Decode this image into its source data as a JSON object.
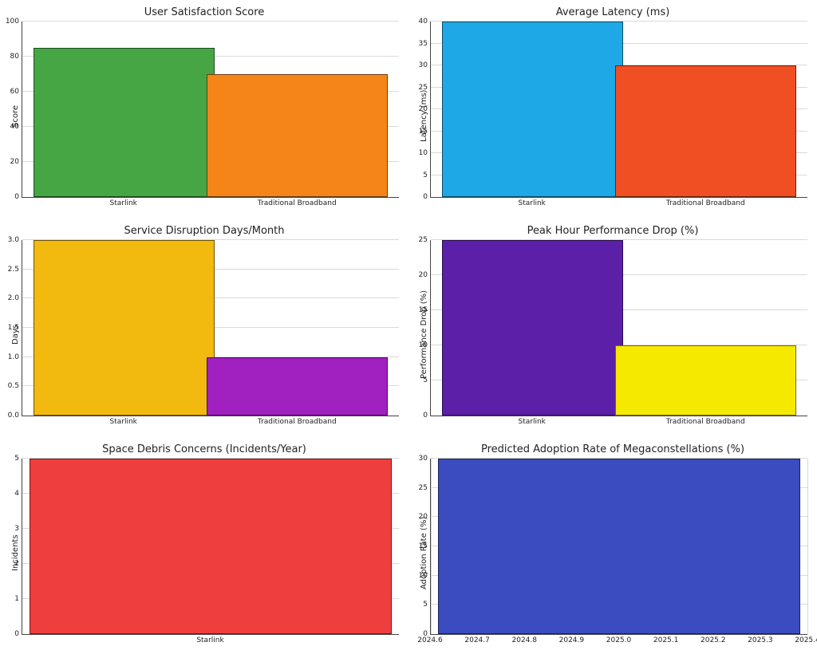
{
  "global": {
    "background_color": "#ffffff",
    "grid_color": "#d9d9d9",
    "axis_color": "#444444",
    "text_color": "#222222",
    "title_fontsize": 13,
    "tick_fontsize": 9,
    "ylabel_fontsize": 10,
    "bar_edge_color": "rgba(0,0,0,0.55)"
  },
  "panels": [
    {
      "id": "satisfaction",
      "type": "bar",
      "title": "User Satisfaction Score",
      "ylabel": "Score",
      "categories": [
        "Starlink",
        "Traditional Broadband"
      ],
      "values": [
        85,
        70
      ],
      "bar_colors": [
        "#46a644",
        "#f58518"
      ],
      "ylim": [
        0,
        100
      ],
      "ytick_step": 20,
      "bar_width": 0.48,
      "bar_centers": [
        0.27,
        0.73
      ]
    },
    {
      "id": "latency",
      "type": "bar",
      "title": "Average Latency (ms)",
      "ylabel": "Latency (ms)",
      "categories": [
        "Starlink",
        "Traditional Broadband"
      ],
      "values": [
        40,
        30
      ],
      "bar_colors": [
        "#1fa8e6",
        "#f04e23"
      ],
      "ylim": [
        0,
        40
      ],
      "ytick_step": 5,
      "bar_width": 0.48,
      "bar_centers": [
        0.27,
        0.73
      ]
    },
    {
      "id": "disruption",
      "type": "bar",
      "title": "Service Disruption Days/Month",
      "ylabel": "Days",
      "categories": [
        "Starlink",
        "Traditional Broadband"
      ],
      "values": [
        3,
        1
      ],
      "bar_colors": [
        "#f2b90f",
        "#a020c0"
      ],
      "ylim": [
        0,
        3
      ],
      "ytick_step": 0.5,
      "ytick_decimals": 1,
      "bar_width": 0.48,
      "bar_centers": [
        0.27,
        0.73
      ]
    },
    {
      "id": "peak",
      "type": "bar",
      "title": "Peak Hour Performance Drop (%)",
      "ylabel": "Performance Drop (%)",
      "categories": [
        "Starlink",
        "Traditional Broadband"
      ],
      "values": [
        25,
        10
      ],
      "bar_colors": [
        "#5b1fa8",
        "#f5e900"
      ],
      "ylim": [
        0,
        25
      ],
      "ytick_step": 5,
      "bar_width": 0.48,
      "bar_centers": [
        0.27,
        0.73
      ]
    },
    {
      "id": "debris",
      "type": "bar",
      "title": "Space Debris Concerns (Incidents/Year)",
      "ylabel": "Incidents",
      "categories": [
        "Starlink"
      ],
      "values": [
        5
      ],
      "bar_colors": [
        "#ef3e3e"
      ],
      "ylim": [
        0,
        5
      ],
      "ytick_step": 1,
      "bar_width": 0.96,
      "bar_centers": [
        0.5
      ]
    },
    {
      "id": "adoption",
      "type": "bar",
      "title": "Predicted Adoption Rate of Megaconstellations (%)",
      "ylabel": "Adoption Rate (%)",
      "xticks": [
        2024.6,
        2024.7,
        2024.8,
        2024.9,
        2025.0,
        2025.1,
        2025.2,
        2025.3,
        2025.4
      ],
      "xtick_decimals": 1,
      "values": [
        30
      ],
      "bar_colors": [
        "#3b4cc0"
      ],
      "ylim": [
        0,
        30
      ],
      "ytick_step": 5,
      "bar_width": 0.96,
      "bar_centers": [
        0.5
      ],
      "vgrid": true
    }
  ]
}
